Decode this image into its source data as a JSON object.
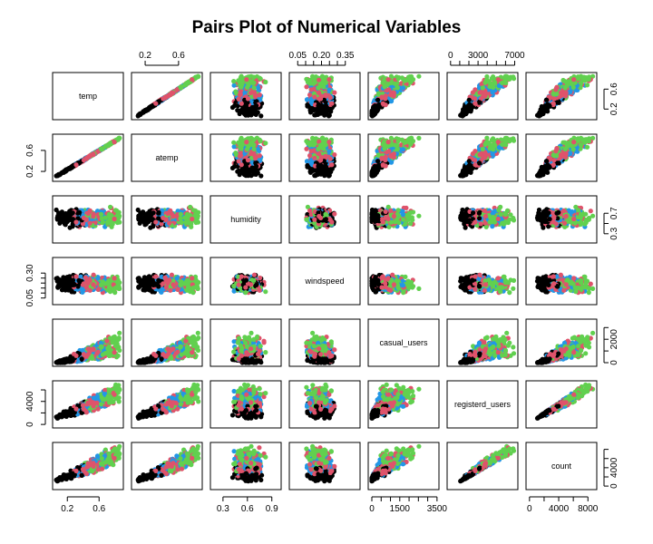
{
  "chart_data": {
    "type": "scatter",
    "chart_kind": "pairs",
    "title": "Pairs Plot of Numerical Variables",
    "variables": [
      {
        "name": "temp",
        "range": [
          0.06,
          0.86
        ],
        "ticks": [
          0.2,
          0.6
        ],
        "tick_side": "bottom"
      },
      {
        "name": "atemp",
        "range": [
          0.08,
          0.84
        ],
        "ticks": [
          0.2,
          0.6
        ],
        "tick_side": "top"
      },
      {
        "name": "humidity",
        "range": [
          0.19,
          0.97
        ],
        "ticks": [
          0.3,
          0.6,
          0.9
        ],
        "tick_labels": [
          "0.3",
          "0.6",
          "0.9"
        ],
        "tick_side": "bottom",
        "right_ticks": [
          0.3,
          0.5,
          0.7
        ],
        "right_tick_labels": [
          "0.3",
          "",
          "0.7"
        ]
      },
      {
        "name": "windspeed",
        "range": [
          0.02,
          0.42
        ],
        "ticks": [
          0.05,
          0.1,
          0.15,
          0.2,
          0.25,
          0.3,
          0.35
        ],
        "tick_labels": [
          "0.05",
          "",
          "",
          "0.20",
          "",
          "",
          "0.35"
        ],
        "tick_side": "top",
        "left_ticks": [
          0.05,
          0.1,
          0.15,
          0.2,
          0.25,
          0.3
        ],
        "left_tick_labels": [
          "0.05",
          "",
          "",
          "",
          "",
          "0.30"
        ]
      },
      {
        "name": "casual_users",
        "range": [
          0,
          3410
        ],
        "ticks": [
          0,
          500,
          1000,
          1500,
          2000,
          2500,
          3000,
          3500
        ],
        "tick_labels": [
          "0",
          "",
          "",
          "1500",
          "",
          "",
          "",
          "3500"
        ],
        "tick_side": "bottom",
        "right_ticks": [
          0,
          1000,
          2000,
          3000
        ],
        "right_tick_labels": [
          "0",
          "",
          "2000",
          ""
        ]
      },
      {
        "name": "registerd_users",
        "range": [
          20,
          6950
        ],
        "ticks": [
          0,
          1000,
          2000,
          3000,
          4000,
          5000,
          6000,
          7000
        ],
        "tick_labels": [
          "0",
          "",
          "",
          "3000",
          "",
          "",
          "",
          "7000"
        ],
        "tick_side": "top",
        "left_ticks": [
          0,
          2000,
          4000,
          6000
        ],
        "left_tick_labels": [
          "0",
          "",
          "4000",
          ""
        ]
      },
      {
        "name": "count",
        "range": [
          22,
          8714
        ],
        "ticks": [
          0,
          2000,
          4000,
          6000,
          8000
        ],
        "tick_labels": [
          "0",
          "",
          "4000",
          "",
          "8000"
        ],
        "tick_side": "bottom",
        "right_ticks": [
          0,
          2000,
          4000,
          6000,
          8000
        ],
        "right_tick_labels": [
          "0",
          "",
          "4000",
          "",
          ""
        ]
      }
    ],
    "groups": [
      {
        "color": "#000000",
        "temp_range": [
          0.06,
          0.45
        ]
      },
      {
        "color": "#DF536B",
        "temp_range": [
          0.28,
          0.8
        ]
      },
      {
        "color": "#61D04F",
        "temp_range": [
          0.4,
          0.86
        ]
      },
      {
        "color": "#2297E6",
        "temp_range": [
          0.3,
          0.7
        ]
      }
    ],
    "points_per_group": 110
  }
}
